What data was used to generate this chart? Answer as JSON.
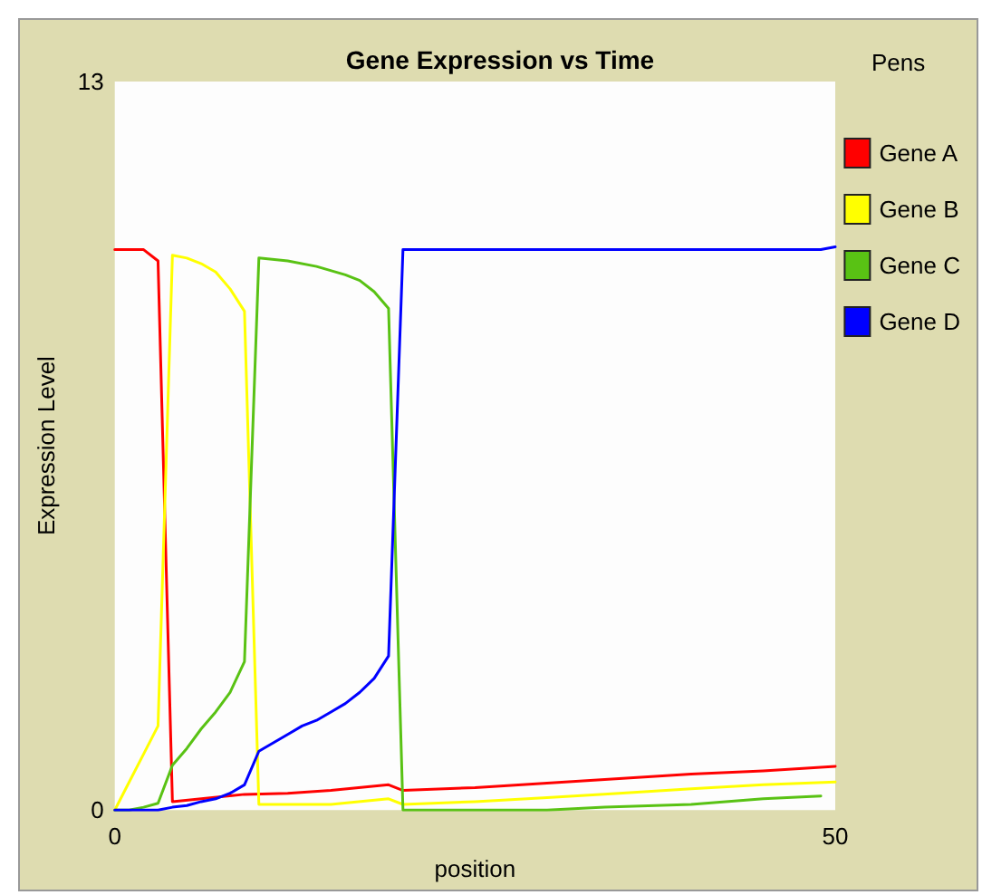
{
  "chart_data": {
    "type": "line",
    "title": "Gene Expression vs Time",
    "xlabel": "position",
    "ylabel": "Expression Level",
    "legend_title": "Pens",
    "xlim": [
      0,
      50
    ],
    "xticks": [
      0,
      50
    ],
    "ylim": [
      0,
      13
    ],
    "yticks": [
      0,
      13
    ],
    "grid": false,
    "legend": "right",
    "marker": "none",
    "line_style": "solid",
    "series": [
      {
        "name": "Gene A",
        "color": "#ff0000",
        "x": [
          0,
          1,
          2,
          3,
          4,
          6,
          9,
          12,
          15,
          19,
          20,
          25,
          30,
          35,
          40,
          45,
          50
        ],
        "values": [
          10,
          10,
          10,
          9.8,
          0.15,
          0.2,
          0.28,
          0.3,
          0.35,
          0.45,
          0.35,
          0.4,
          0.48,
          0.56,
          0.64,
          0.7,
          0.78
        ]
      },
      {
        "name": "Gene B",
        "color": "#ffff00",
        "x": [
          0,
          1,
          2,
          3,
          4,
          5,
          6,
          7,
          8,
          9,
          10,
          15,
          19,
          20,
          25,
          30,
          35,
          40,
          45,
          50
        ],
        "values": [
          0,
          0.5,
          1,
          1.5,
          9.9,
          9.85,
          9.75,
          9.6,
          9.3,
          8.9,
          0.1,
          0.1,
          0.2,
          0.1,
          0.15,
          0.22,
          0.3,
          0.38,
          0.45,
          0.5
        ]
      },
      {
        "name": "Gene C",
        "color": "#59c214",
        "x": [
          0,
          1,
          2,
          3,
          4,
          5,
          6,
          7,
          8,
          9,
          10,
          12,
          14,
          16,
          17,
          18,
          19,
          20,
          25,
          30,
          34,
          40,
          45,
          49
        ],
        "values": [
          0,
          0,
          0.05,
          0.12,
          0.8,
          1.1,
          1.45,
          1.75,
          2.1,
          2.65,
          9.85,
          9.8,
          9.7,
          9.55,
          9.45,
          9.25,
          8.95,
          0,
          0,
          0,
          0.05,
          0.1,
          0.2,
          0.25
        ]
      },
      {
        "name": "Gene D",
        "color": "#0000ff",
        "x": [
          0,
          3,
          4,
          5,
          6,
          7,
          8,
          9,
          10,
          11,
          12,
          13,
          14,
          15,
          16,
          17,
          18,
          19,
          20,
          49,
          50
        ],
        "values": [
          0,
          0,
          0.05,
          0.08,
          0.15,
          0.2,
          0.3,
          0.45,
          1.05,
          1.2,
          1.35,
          1.5,
          1.6,
          1.75,
          1.9,
          2.1,
          2.35,
          2.75,
          10,
          10,
          10.05
        ]
      }
    ]
  }
}
